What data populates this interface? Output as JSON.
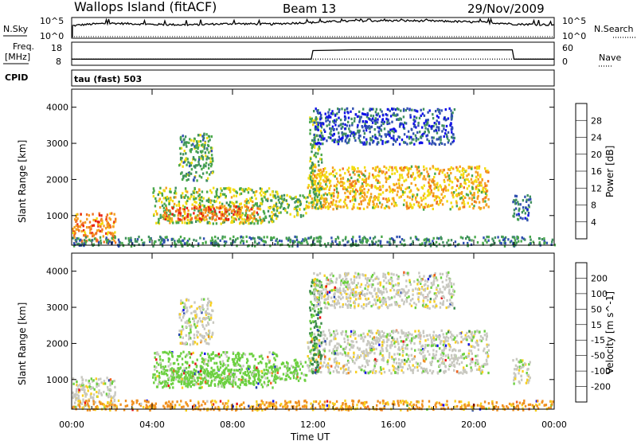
{
  "header": {
    "station": "Wallops Island (fitACF)",
    "beam": "Beam 13",
    "date": "29/Nov/2009"
  },
  "side_labels": {
    "nsky": "N.Sky",
    "nsearch": "N.Search",
    "freq": "Freq.",
    "freq_unit": "[MHz]",
    "nave": "Nave",
    "cpid": "CPID",
    "cpid_value": "tau (fast) 503"
  },
  "noise_axis_labels": {
    "top": "10^5",
    "bottom": "10^0"
  },
  "freq_axis_labels": {
    "left_top": "18",
    "left_bottom": "8",
    "right_top": "60",
    "right_bottom": "0"
  },
  "colors": {
    "power": [
      "#1010e8",
      "#3050b0",
      "#3f8f5f",
      "#49a84a",
      "#f2dc10",
      "#f5a020",
      "#f07020",
      "#e82010"
    ],
    "velocity": [
      "#1010e8",
      "#2244aa",
      "#3a8a4a",
      "#6cd040",
      "#c8c8c0",
      "#f8d020",
      "#f09020",
      "#f06020",
      "#e81010"
    ]
  },
  "chart_data": [
    {
      "type": "line",
      "title": "N.Sky / N.Search",
      "yscale": "log",
      "ylim": [
        1,
        100000
      ],
      "x": [
        "00:00",
        "02:00",
        "04:00",
        "06:00",
        "08:00",
        "10:00",
        "12:00",
        "14:00",
        "16:00",
        "18:00",
        "20:00",
        "22:00",
        "24:00"
      ],
      "series": [
        {
          "name": "N.Sky",
          "values": [
            1000,
            5000,
            2500,
            2000,
            4000,
            3000,
            8000,
            20000,
            25000,
            20000,
            10000,
            3000,
            2000
          ]
        },
        {
          "name": "N.Search",
          "values": [
            1,
            1,
            1,
            1,
            1,
            1,
            1,
            1,
            1,
            1,
            1,
            1,
            1
          ]
        }
      ]
    },
    {
      "type": "line",
      "title": "Freq. / Nave",
      "x": [
        "00:00",
        "02:00",
        "04:00",
        "06:00",
        "08:00",
        "10:00",
        "11:00",
        "11:55",
        "12:00",
        "14:00",
        "16:00",
        "18:00",
        "20:00",
        "21:55",
        "22:00",
        "24:00"
      ],
      "series": [
        {
          "name": "Freq. [MHz]",
          "values": [
            10.5,
            10.5,
            10.5,
            10.5,
            10.5,
            10.5,
            10.5,
            10.5,
            14.5,
            14.8,
            14.8,
            14.8,
            14.8,
            14.8,
            10.5,
            10.5
          ]
        },
        {
          "name": "Nave",
          "values": [
            15,
            15,
            15,
            15,
            15,
            15,
            15,
            15,
            15,
            15,
            15,
            15,
            15,
            15,
            15,
            15
          ]
        }
      ],
      "ylim_left": [
        8,
        18
      ],
      "ylim_right": [
        0,
        60
      ]
    },
    {
      "type": "heatmap",
      "title": "Power",
      "xlabel": "Time UT",
      "ylabel": "Slant Range [km]",
      "xlim": [
        "00:00",
        "24:00"
      ],
      "ylim": [
        180,
        4500
      ],
      "x_ticks": [
        "00:00",
        "04:00",
        "08:00",
        "12:00",
        "16:00",
        "20:00",
        "00:00"
      ],
      "y_ticks": [
        1000,
        2000,
        3000,
        4000
      ],
      "colorbar_label": "Power [dB]",
      "colorbar_ticks": [
        4,
        8,
        12,
        16,
        20,
        24,
        28
      ],
      "regions": [
        {
          "t0": 0.0,
          "t1": 2.2,
          "r0": 250,
          "r1": 1100,
          "level": 24
        },
        {
          "t0": 4.0,
          "t1": 10.2,
          "r0": 800,
          "r1": 1800,
          "level": 16
        },
        {
          "t0": 4.5,
          "t1": 9.3,
          "r0": 900,
          "r1": 1300,
          "level": 26
        },
        {
          "t0": 5.3,
          "t1": 7.0,
          "r0": 2000,
          "r1": 3300,
          "level": 12
        },
        {
          "t0": 10.0,
          "t1": 11.7,
          "r0": 1000,
          "r1": 1600,
          "level": 14
        },
        {
          "t0": 11.7,
          "t1": 20.7,
          "r0": 1200,
          "r1": 2400,
          "level": 20
        },
        {
          "t0": 11.8,
          "t1": 12.4,
          "r0": 1200,
          "r1": 3800,
          "level": 14
        },
        {
          "t0": 12.0,
          "t1": 19.0,
          "r0": 3000,
          "r1": 4000,
          "level": 6
        },
        {
          "t0": 21.9,
          "t1": 22.8,
          "r0": 900,
          "r1": 1600,
          "level": 8
        },
        {
          "t0": 0.0,
          "t1": 24.0,
          "r0": 180,
          "r1": 450,
          "level": 10
        }
      ]
    },
    {
      "type": "heatmap",
      "title": "Velocity",
      "xlabel": "Time UT",
      "ylabel": "Slant Range [km]",
      "xlim": [
        "00:00",
        "24:00"
      ],
      "ylim": [
        180,
        4500
      ],
      "x_ticks": [
        "00:00",
        "04:00",
        "08:00",
        "12:00",
        "16:00",
        "20:00",
        "00:00"
      ],
      "y_ticks": [
        1000,
        2000,
        3000,
        4000
      ],
      "colorbar_label": "Velocity [m s^-1]",
      "colorbar_ticks": [
        200,
        100,
        50,
        15,
        -15,
        -50,
        -100,
        -200
      ],
      "regions": [
        {
          "t0": 0.0,
          "t1": 2.2,
          "r0": 250,
          "r1": 1100,
          "level": 0
        },
        {
          "t0": 4.0,
          "t1": 10.2,
          "r0": 800,
          "r1": 1800,
          "level": 30
        },
        {
          "t0": 4.5,
          "t1": 9.3,
          "r0": 900,
          "r1": 1300,
          "level": 30
        },
        {
          "t0": 5.3,
          "t1": 7.0,
          "r0": 2000,
          "r1": 3300,
          "level": 0
        },
        {
          "t0": 10.0,
          "t1": 11.7,
          "r0": 1000,
          "r1": 1600,
          "level": 30
        },
        {
          "t0": 11.7,
          "t1": 20.7,
          "r0": 1200,
          "r1": 2400,
          "level": 0
        },
        {
          "t0": 11.8,
          "t1": 12.4,
          "r0": 1200,
          "r1": 3800,
          "level": 60
        },
        {
          "t0": 12.0,
          "t1": 19.0,
          "r0": 3000,
          "r1": 4000,
          "level": 0
        },
        {
          "t0": 21.9,
          "t1": 22.8,
          "r0": 900,
          "r1": 1600,
          "level": 0
        },
        {
          "t0": 0.0,
          "t1": 24.0,
          "r0": 180,
          "r1": 450,
          "level": -60
        }
      ]
    }
  ]
}
